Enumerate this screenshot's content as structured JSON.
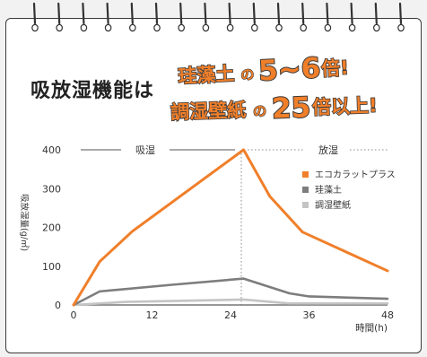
{
  "headline": {
    "left_title": "吸放湿機能は",
    "line1": {
      "a": "珪藻土",
      "b": "の",
      "c": "5~6",
      "d": "倍!"
    },
    "line2": {
      "a": "調湿壁紙",
      "b": "の",
      "c": "25",
      "d": "倍以上!"
    }
  },
  "colors": {
    "ecocarat": "#f07f2a",
    "keisoudo": "#7d7d7d",
    "wallpaper": "#c4c4c4",
    "headline_fill": "#f07f2a",
    "headline_outline": "#3a3a3a"
  },
  "chart_data": {
    "type": "line",
    "phase_labels": [
      "吸湿",
      "放湿"
    ],
    "ylabel": "吸放湿量(g/㎡)",
    "xlabel": "時間(h)",
    "xticks": [
      0,
      12,
      24,
      36,
      48
    ],
    "yticks": [
      0,
      100,
      200,
      300,
      400
    ],
    "xlim": [
      0,
      48
    ],
    "ylim": [
      0,
      400
    ],
    "grid": false,
    "legend_position": "top-right",
    "series": [
      {
        "name": "エコカラットプラス",
        "color": "#f07f2a",
        "x": [
          0,
          4,
          9,
          26,
          30,
          35,
          48
        ],
        "y": [
          0,
          112,
          190,
          400,
          280,
          188,
          88
        ]
      },
      {
        "name": "珪藻土",
        "color": "#7d7d7d",
        "x": [
          0,
          4,
          15,
          26,
          33,
          36,
          48
        ],
        "y": [
          0,
          35,
          52,
          68,
          30,
          22,
          16
        ]
      },
      {
        "name": "調湿壁紙",
        "color": "#c4c4c4",
        "x": [
          0,
          8,
          26,
          33,
          48
        ],
        "y": [
          0,
          8,
          14,
          4,
          4
        ]
      }
    ]
  }
}
